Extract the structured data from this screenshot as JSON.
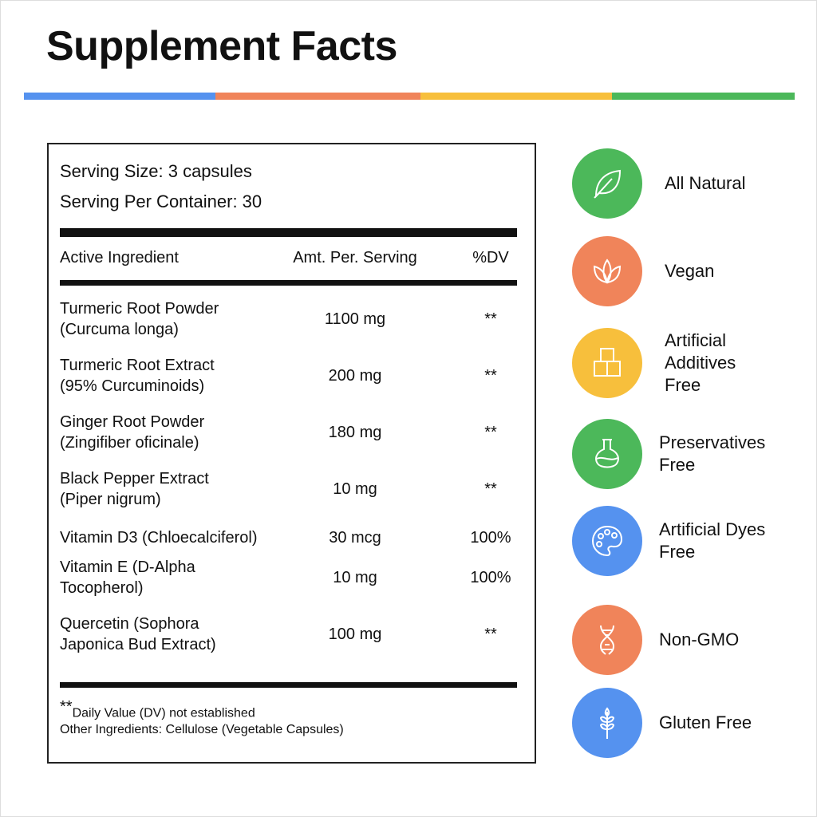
{
  "header": {
    "title": "Supplement Facts"
  },
  "facts": {
    "serving_size": "Serving Size:  3 capsules",
    "servings_per_container": "Serving Per Container: 30",
    "table": {
      "headers": [
        "Active Ingredient",
        "Amt. Per. Serving",
        "%DV"
      ],
      "rows": [
        {
          "name": [
            "Turmeric Root Powder",
            "(Curcuma longa)"
          ],
          "amount": "1100 mg",
          "dv": "**"
        },
        {
          "name": [
            "Turmeric Root Extract",
            "(95% Curcuminoids)"
          ],
          "amount": "200 mg",
          "dv": "**"
        },
        {
          "name": [
            "Ginger Root Powder",
            "(Zingifiber oficinale)"
          ],
          "amount": "180 mg",
          "dv": "**"
        },
        {
          "name": [
            "Black Pepper Extract",
            "(Piper nigrum)"
          ],
          "amount": "10 mg",
          "dv": "**"
        },
        {
          "name": [
            "Vitamin D3 (Chloecalciferol)"
          ],
          "amount": "30 mcg",
          "dv": "100%"
        },
        {
          "name": [
            "Vitamin E (D-Alpha",
            "Tocopherol)"
          ],
          "amount": "10 mg",
          "dv": "100%"
        },
        {
          "name": [
            "Quercetin (Sophora",
            "Japonica Bud Extract)"
          ],
          "amount": "100 mg",
          "dv": "**"
        }
      ]
    },
    "footnote": {
      "marker": "**",
      "text": "Daily Value (DV) not established"
    },
    "other_ingredients": "Other Ingredients: Cellulose (Vegetable Capsules)"
  },
  "badges": [
    {
      "label": [
        "All Natural"
      ]
    },
    {
      "label": [
        "Vegan"
      ]
    },
    {
      "label": [
        "Artificial",
        "Additives",
        "Free"
      ]
    },
    {
      "label": [
        "Preservatives",
        "Free"
      ]
    },
    {
      "label": [
        "Artificial Dyes",
        "Free"
      ]
    },
    {
      "label": [
        "Non-GMO"
      ]
    },
    {
      "label": [
        "Gluten Free"
      ]
    }
  ]
}
